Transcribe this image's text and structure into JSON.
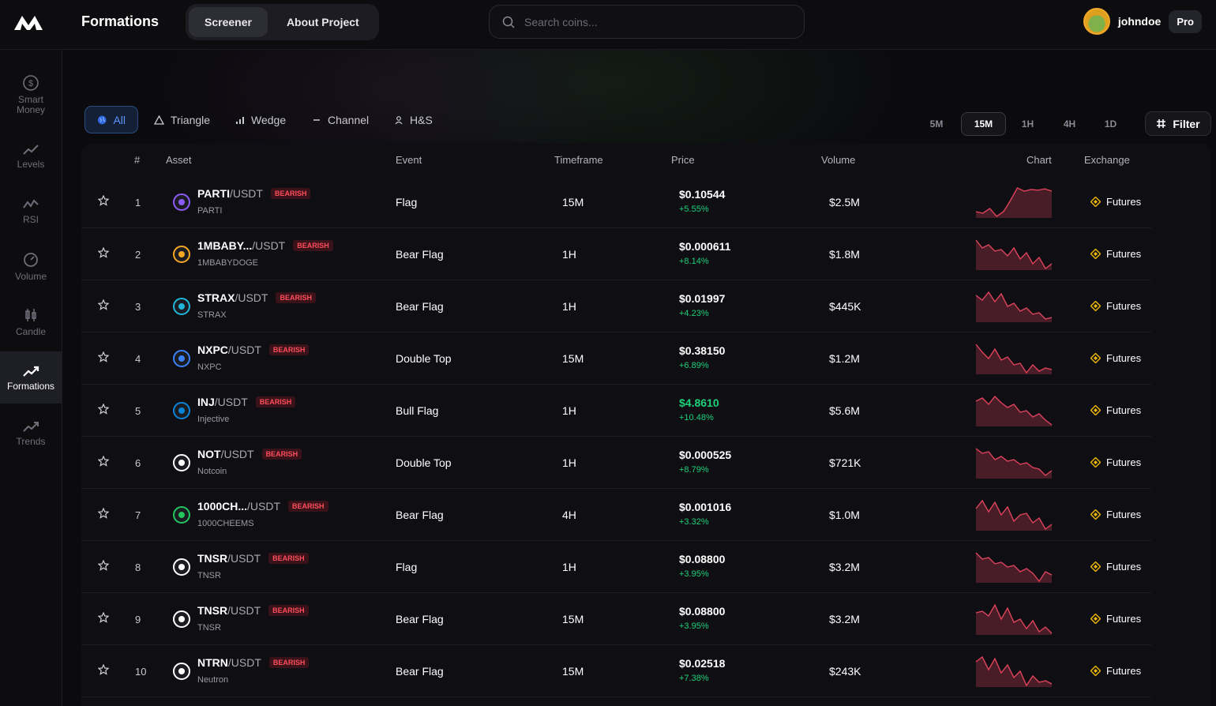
{
  "header": {
    "app_title": "Formations",
    "tabs": [
      "Screener",
      "About Project"
    ],
    "search_placeholder": "Search coins...",
    "username": "johndoe",
    "plan_badge": "Pro"
  },
  "sidebar": {
    "items": [
      {
        "label": "Smart Money",
        "icon": "dollar-circle-icon"
      },
      {
        "label": "Levels",
        "icon": "line-up-icon"
      },
      {
        "label": "RSI",
        "icon": "rsi-wave-icon"
      },
      {
        "label": "Volume",
        "icon": "gauge-icon"
      },
      {
        "label": "Candle",
        "icon": "candle-icon"
      },
      {
        "label": "Formations",
        "icon": "trending-up-icon",
        "active": true
      },
      {
        "label": "Trends",
        "icon": "trend-arrow-icon"
      }
    ]
  },
  "filters": {
    "patterns": [
      "All",
      "Triangle",
      "Wedge",
      "Channel",
      "H&S"
    ],
    "timeframes": [
      "5M",
      "15M",
      "1H",
      "4H",
      "1D"
    ],
    "active_timeframe": "15M",
    "filter_label": "Filter"
  },
  "table": {
    "columns": [
      "#",
      "Asset",
      "Event",
      "Timeframe",
      "Price",
      "Volume",
      "Chart",
      "Exchange"
    ],
    "rows": [
      {
        "rank": "1",
        "symbol": "PARTI",
        "pair": "/USDT",
        "badge": "BEARISH",
        "name": "PARTI",
        "event": "Flag",
        "timeframe": "15M",
        "price": "$0.10544",
        "change": "+5.55%",
        "volume": "$2.5M",
        "exchange": "Futures",
        "icon_color": "#8b5cf6",
        "spark": [
          0.2,
          0.15,
          0.3,
          0.05,
          0.2,
          0.55,
          0.95,
          0.85,
          0.9,
          0.88,
          0.92,
          0.85
        ]
      },
      {
        "rank": "2",
        "symbol": "1MBABY...",
        "pair": "/USDT",
        "badge": "BEARISH",
        "name": "1MBABYDOGE",
        "event": "Bear Flag",
        "timeframe": "1H",
        "price": "$0.000611",
        "change": "+8.14%",
        "volume": "$1.8M",
        "exchange": "Futures",
        "icon_color": "#f5a623",
        "spark": [
          0.95,
          0.7,
          0.8,
          0.6,
          0.65,
          0.45,
          0.7,
          0.35,
          0.55,
          0.2,
          0.4,
          0.05,
          0.2
        ]
      },
      {
        "rank": "3",
        "symbol": "STRAX",
        "pair": "/USDT",
        "badge": "BEARISH",
        "name": "STRAX",
        "event": "Bear Flag",
        "timeframe": "1H",
        "price": "$0.01997",
        "change": "+4.23%",
        "volume": "$445K",
        "exchange": "Futures",
        "icon_color": "#1fb6d8",
        "spark": [
          0.85,
          0.7,
          0.95,
          0.65,
          0.9,
          0.5,
          0.6,
          0.35,
          0.45,
          0.25,
          0.3,
          0.1,
          0.15
        ]
      },
      {
        "rank": "4",
        "symbol": "NXPC",
        "pair": "/USDT",
        "badge": "BEARISH",
        "name": "NXPC",
        "event": "Double Top",
        "timeframe": "15M",
        "price": "$0.38150",
        "change": "+6.89%",
        "volume": "$1.2M",
        "exchange": "Futures",
        "icon_color": "#3b82f6",
        "spark": [
          0.95,
          0.7,
          0.5,
          0.8,
          0.45,
          0.55,
          0.3,
          0.35,
          0.05,
          0.3,
          0.1,
          0.2,
          0.15
        ]
      },
      {
        "rank": "5",
        "symbol": "INJ",
        "pair": "/USDT",
        "badge": "BEARISH",
        "name": "Injective",
        "event": "Bull Flag",
        "timeframe": "1H",
        "price": "$4.8610",
        "change": "+10.48%",
        "volume": "$5.6M",
        "exchange": "Futures",
        "icon_color": "#0a84d6",
        "price_green": true,
        "spark": [
          0.8,
          0.9,
          0.7,
          0.95,
          0.75,
          0.6,
          0.7,
          0.45,
          0.5,
          0.3,
          0.4,
          0.2,
          0.05
        ]
      },
      {
        "rank": "6",
        "symbol": "NOT",
        "pair": "/USDT",
        "badge": "BEARISH",
        "name": "Notcoin",
        "event": "Double Top",
        "timeframe": "1H",
        "price": "$0.000525",
        "change": "+8.79%",
        "volume": "$721K",
        "exchange": "Futures",
        "icon_color": "#ffffff",
        "spark": [
          0.95,
          0.8,
          0.85,
          0.6,
          0.7,
          0.55,
          0.6,
          0.45,
          0.5,
          0.35,
          0.3,
          0.1,
          0.25
        ]
      },
      {
        "rank": "7",
        "symbol": "1000CH...",
        "pair": "/USDT",
        "badge": "BEARISH",
        "name": "1000CHEEMS",
        "event": "Bear Flag",
        "timeframe": "4H",
        "price": "$0.001016",
        "change": "+3.32%",
        "volume": "$1.0M",
        "exchange": "Futures",
        "icon_color": "#22c55e",
        "spark": [
          0.7,
          0.95,
          0.6,
          0.9,
          0.5,
          0.75,
          0.3,
          0.5,
          0.55,
          0.25,
          0.4,
          0.05,
          0.2
        ]
      },
      {
        "rank": "8",
        "symbol": "TNSR",
        "pair": "/USDT",
        "badge": "BEARISH",
        "name": "TNSR",
        "event": "Flag",
        "timeframe": "1H",
        "price": "$0.08800",
        "change": "+3.95%",
        "volume": "$3.2M",
        "exchange": "Futures",
        "icon_color": "#ffffff",
        "spark": [
          0.95,
          0.75,
          0.8,
          0.6,
          0.65,
          0.5,
          0.55,
          0.35,
          0.45,
          0.3,
          0.05,
          0.35,
          0.25
        ]
      },
      {
        "rank": "9",
        "symbol": "TNSR",
        "pair": "/USDT",
        "badge": "BEARISH",
        "name": "TNSR",
        "event": "Bear Flag",
        "timeframe": "15M",
        "price": "$0.08800",
        "change": "+3.95%",
        "volume": "$3.2M",
        "exchange": "Futures",
        "icon_color": "#ffffff",
        "spark": [
          0.7,
          0.75,
          0.6,
          0.95,
          0.5,
          0.85,
          0.4,
          0.5,
          0.2,
          0.45,
          0.1,
          0.25,
          0.05
        ]
      },
      {
        "rank": "10",
        "symbol": "NTRN",
        "pair": "/USDT",
        "badge": "BEARISH",
        "name": "Neutron",
        "event": "Bear Flag",
        "timeframe": "15M",
        "price": "$0.02518",
        "change": "+7.38%",
        "volume": "$243K",
        "exchange": "Futures",
        "icon_color": "#ffffff",
        "spark": [
          0.8,
          0.95,
          0.55,
          0.9,
          0.45,
          0.7,
          0.3,
          0.5,
          0.05,
          0.35,
          0.15,
          0.2,
          0.1
        ]
      }
    ]
  },
  "colors": {
    "accent_blue": "#5b93ff",
    "green": "#1fd07a",
    "bearish_red": "#ff4d5b",
    "spark_stroke": "#e0435c",
    "futures_gold": "#f0b90b"
  }
}
